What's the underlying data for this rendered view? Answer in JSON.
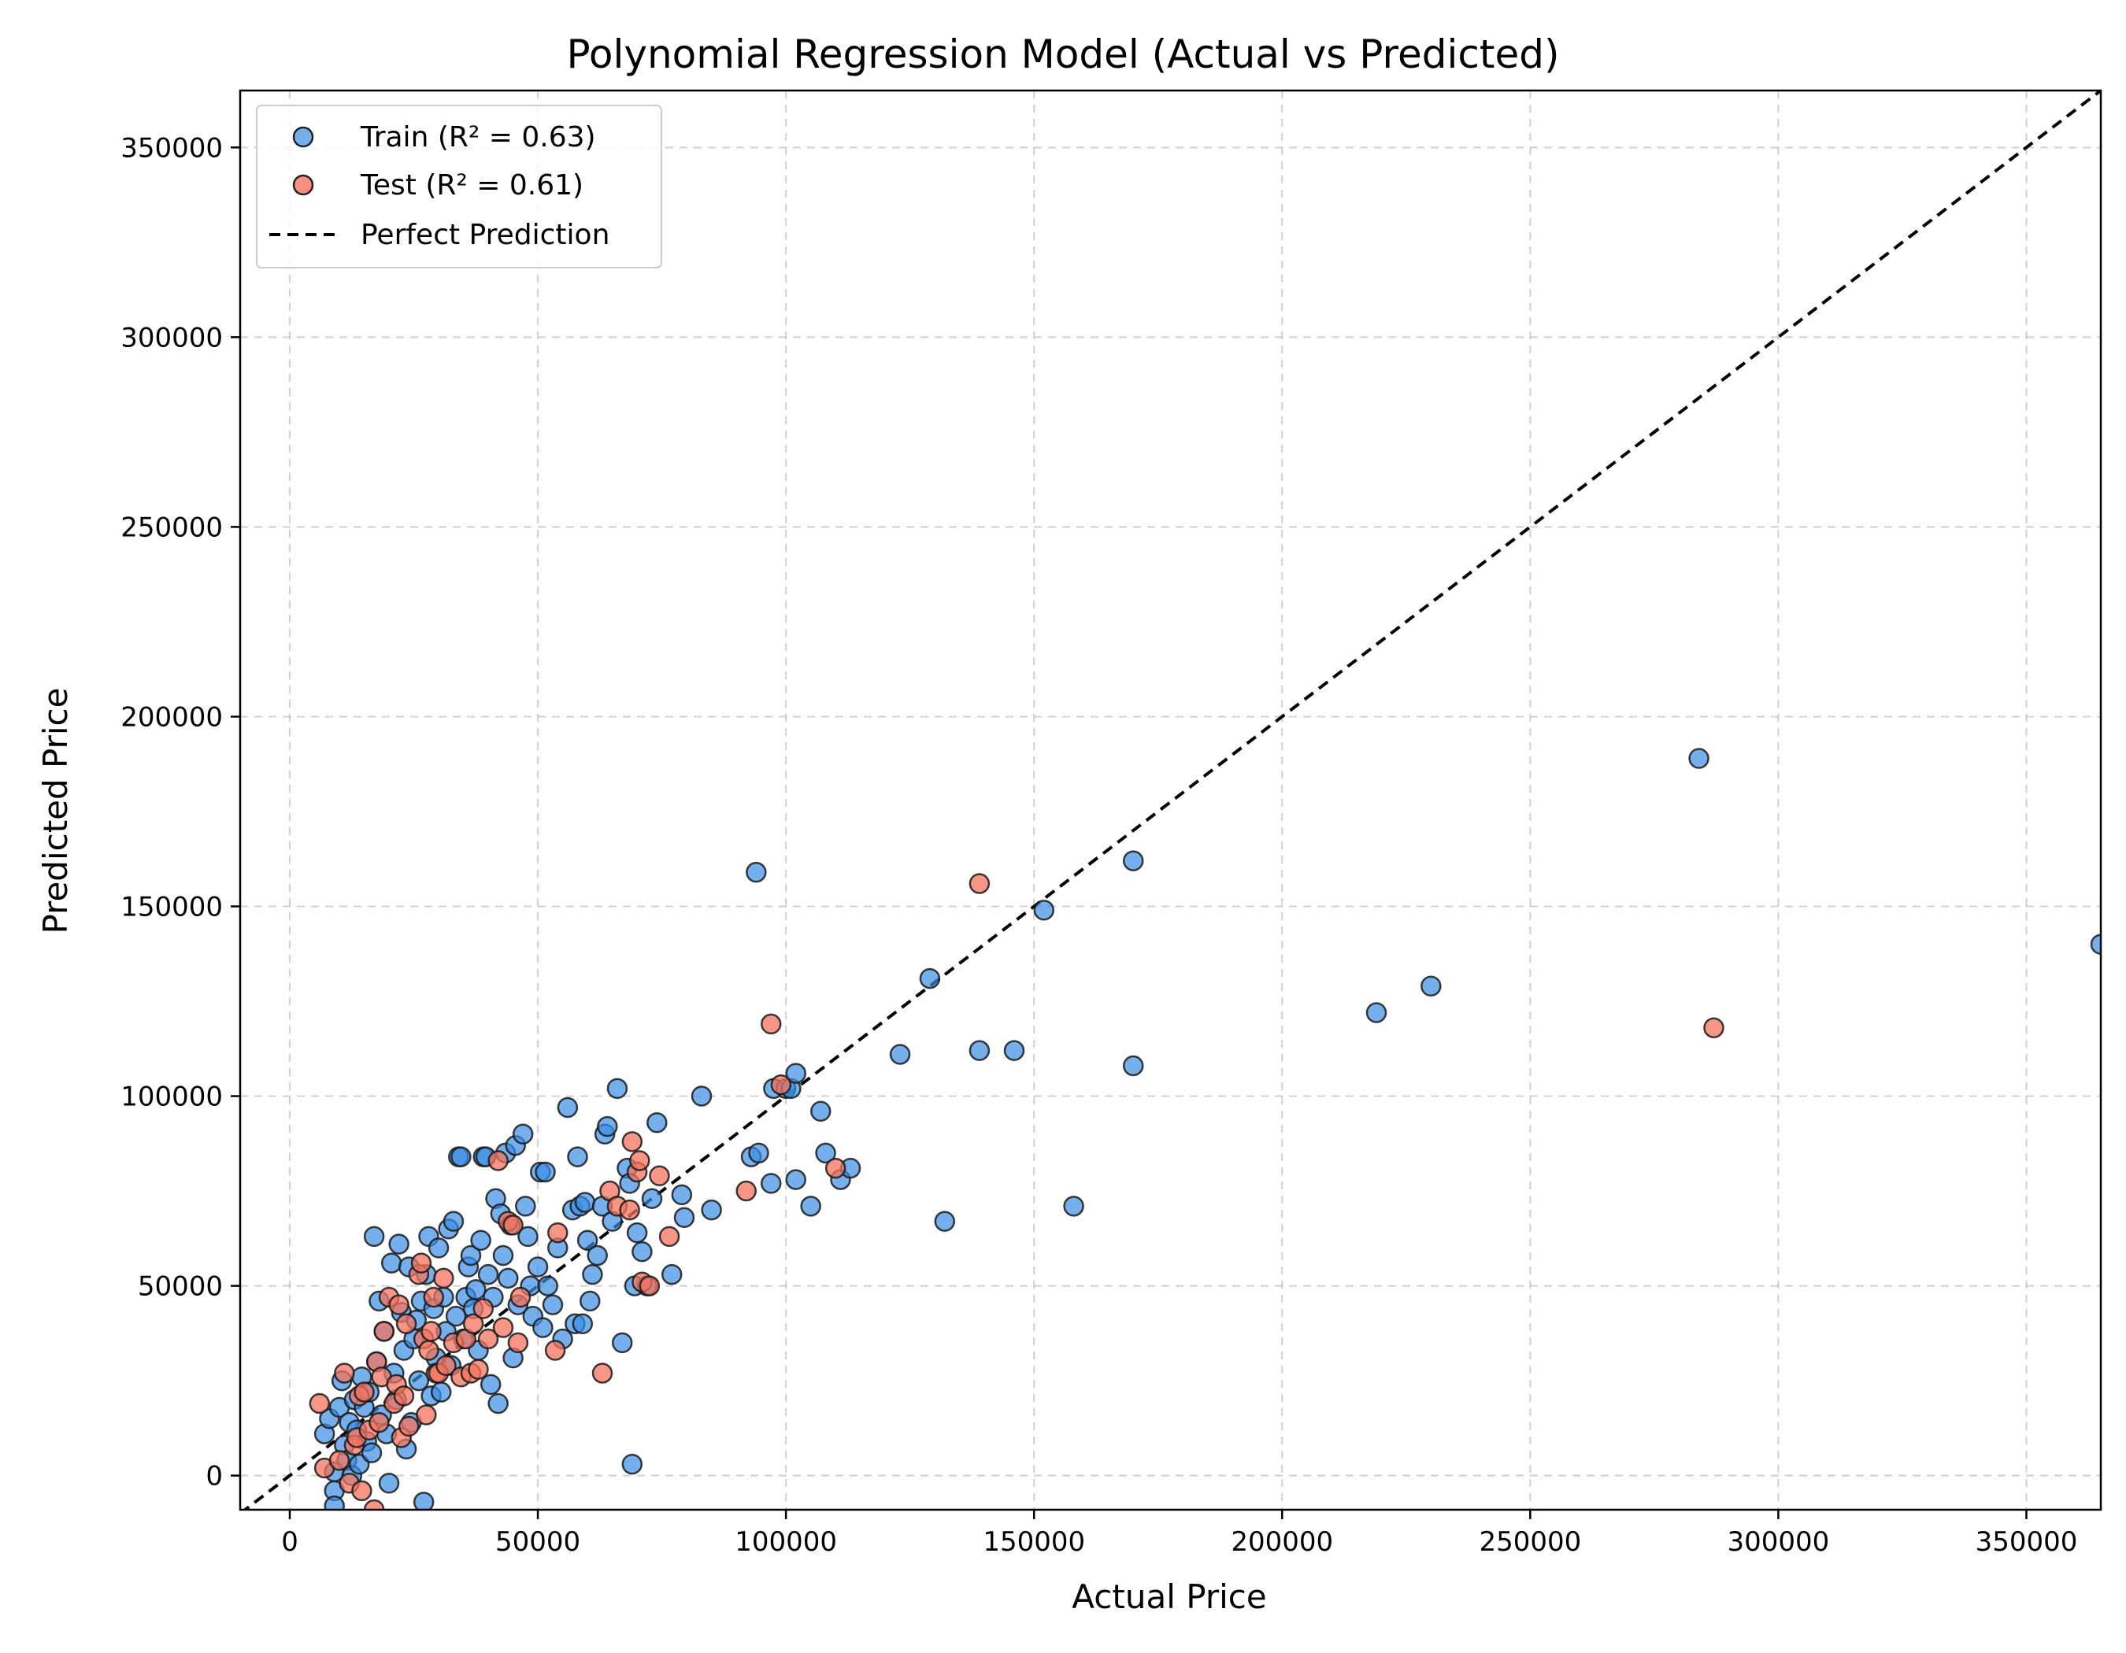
{
  "chart_data": {
    "type": "scatter",
    "title": "Polynomial Regression Model (Actual vs Predicted)",
    "xlabel": "Actual Price",
    "ylabel": "Predicted Price",
    "xlim": [
      -10000,
      365000
    ],
    "ylim": [
      -9000,
      365000
    ],
    "xticks": [
      0,
      50000,
      100000,
      150000,
      200000,
      250000,
      300000,
      350000
    ],
    "yticks": [
      0,
      50000,
      100000,
      150000,
      200000,
      250000,
      300000,
      350000
    ],
    "grid": true,
    "legend_position": "top-left",
    "series": [
      {
        "name": "Train (R² = 0.63)",
        "color": "#3a8ee6",
        "points": [
          [
            7000,
            11000
          ],
          [
            8000,
            15000
          ],
          [
            9000,
            1000
          ],
          [
            9000,
            -4000
          ],
          [
            9000,
            -8000
          ],
          [
            10000,
            18000
          ],
          [
            10500,
            25000
          ],
          [
            11000,
            8000
          ],
          [
            11500,
            4000
          ],
          [
            12000,
            14000
          ],
          [
            12500,
            0
          ],
          [
            13000,
            20000
          ],
          [
            13500,
            12000
          ],
          [
            14000,
            3000
          ],
          [
            14500,
            26000
          ],
          [
            15000,
            18000
          ],
          [
            15500,
            9000
          ],
          [
            16000,
            22000
          ],
          [
            16500,
            6000
          ],
          [
            17000,
            63000
          ],
          [
            17500,
            30000
          ],
          [
            18000,
            46000
          ],
          [
            18500,
            16000
          ],
          [
            19000,
            38000
          ],
          [
            19500,
            11000
          ],
          [
            20000,
            -2000
          ],
          [
            20500,
            56000
          ],
          [
            21000,
            27000
          ],
          [
            21500,
            20000
          ],
          [
            22000,
            61000
          ],
          [
            22500,
            43000
          ],
          [
            23000,
            33000
          ],
          [
            23500,
            7000
          ],
          [
            24000,
            55000
          ],
          [
            24500,
            14000
          ],
          [
            25000,
            36000
          ],
          [
            25500,
            41000
          ],
          [
            26000,
            25000
          ],
          [
            26500,
            46000
          ],
          [
            27000,
            -7000
          ],
          [
            27500,
            53000
          ],
          [
            28000,
            63000
          ],
          [
            28500,
            21000
          ],
          [
            29000,
            44000
          ],
          [
            29500,
            31000
          ],
          [
            30000,
            60000
          ],
          [
            30500,
            22000
          ],
          [
            31000,
            47000
          ],
          [
            31500,
            38000
          ],
          [
            32000,
            65000
          ],
          [
            32500,
            29000
          ],
          [
            33000,
            67000
          ],
          [
            33500,
            42000
          ],
          [
            34000,
            84000
          ],
          [
            34500,
            84000
          ],
          [
            35000,
            36000
          ],
          [
            35500,
            47000
          ],
          [
            36000,
            55000
          ],
          [
            36500,
            58000
          ],
          [
            37000,
            44000
          ],
          [
            37500,
            49000
          ],
          [
            38000,
            33000
          ],
          [
            38500,
            62000
          ],
          [
            39000,
            84000
          ],
          [
            39500,
            84000
          ],
          [
            40000,
            53000
          ],
          [
            40500,
            24000
          ],
          [
            41000,
            47000
          ],
          [
            41500,
            73000
          ],
          [
            42000,
            19000
          ],
          [
            42500,
            69000
          ],
          [
            43000,
            58000
          ],
          [
            43500,
            85000
          ],
          [
            44000,
            52000
          ],
          [
            44500,
            66000
          ],
          [
            45000,
            31000
          ],
          [
            45500,
            87000
          ],
          [
            46000,
            45000
          ],
          [
            47000,
            90000
          ],
          [
            47500,
            71000
          ],
          [
            48000,
            63000
          ],
          [
            48500,
            50000
          ],
          [
            49000,
            42000
          ],
          [
            50000,
            55000
          ],
          [
            50500,
            80000
          ],
          [
            51000,
            39000
          ],
          [
            51500,
            80000
          ],
          [
            52000,
            50000
          ],
          [
            53000,
            45000
          ],
          [
            54000,
            60000
          ],
          [
            55000,
            36000
          ],
          [
            56000,
            97000
          ],
          [
            57000,
            70000
          ],
          [
            57500,
            40000
          ],
          [
            58000,
            84000
          ],
          [
            58500,
            71000
          ],
          [
            59000,
            40000
          ],
          [
            59500,
            72000
          ],
          [
            60000,
            62000
          ],
          [
            60500,
            46000
          ],
          [
            61000,
            53000
          ],
          [
            62000,
            58000
          ],
          [
            63000,
            71000
          ],
          [
            63500,
            90000
          ],
          [
            64000,
            92000
          ],
          [
            65000,
            67000
          ],
          [
            66000,
            102000
          ],
          [
            67000,
            35000
          ],
          [
            68000,
            81000
          ],
          [
            68500,
            77000
          ],
          [
            69000,
            3000
          ],
          [
            69500,
            50000
          ],
          [
            70000,
            64000
          ],
          [
            71000,
            59000
          ],
          [
            72000,
            50000
          ],
          [
            73000,
            73000
          ],
          [
            74000,
            93000
          ],
          [
            77000,
            53000
          ],
          [
            79000,
            74000
          ],
          [
            79500,
            68000
          ],
          [
            83000,
            100000
          ],
          [
            85000,
            70000
          ],
          [
            93000,
            84000
          ],
          [
            94000,
            159000
          ],
          [
            94500,
            85000
          ],
          [
            97000,
            77000
          ],
          [
            97500,
            102000
          ],
          [
            100000,
            102000
          ],
          [
            101000,
            102000
          ],
          [
            102000,
            106000
          ],
          [
            102000,
            78000
          ],
          [
            105000,
            71000
          ],
          [
            107000,
            96000
          ],
          [
            108000,
            85000
          ],
          [
            111000,
            78000
          ],
          [
            113000,
            81000
          ],
          [
            123000,
            111000
          ],
          [
            129000,
            131000
          ],
          [
            132000,
            67000
          ],
          [
            139000,
            112000
          ],
          [
            146000,
            112000
          ],
          [
            152000,
            149000
          ],
          [
            158000,
            71000
          ],
          [
            170000,
            162000
          ],
          [
            170000,
            108000
          ],
          [
            219000,
            122000
          ],
          [
            230000,
            129000
          ],
          [
            284000,
            189000
          ],
          [
            365000,
            140000
          ]
        ]
      },
      {
        "name": "Test (R² = 0.61)",
        "color": "#f4735d",
        "points": [
          [
            6000,
            19000
          ],
          [
            7000,
            2000
          ],
          [
            10000,
            4000
          ],
          [
            11000,
            27000
          ],
          [
            12000,
            -2000
          ],
          [
            13000,
            8000
          ],
          [
            13500,
            10000
          ],
          [
            14000,
            21000
          ],
          [
            14500,
            -4000
          ],
          [
            15000,
            22000
          ],
          [
            16000,
            12000
          ],
          [
            17000,
            -9000
          ],
          [
            17500,
            30000
          ],
          [
            18000,
            14000
          ],
          [
            18500,
            26000
          ],
          [
            19000,
            38000
          ],
          [
            20000,
            47000
          ],
          [
            21000,
            19000
          ],
          [
            21500,
            24000
          ],
          [
            22000,
            45000
          ],
          [
            22500,
            10000
          ],
          [
            23000,
            21000
          ],
          [
            23500,
            40000
          ],
          [
            24000,
            13000
          ],
          [
            26000,
            53000
          ],
          [
            26500,
            56000
          ],
          [
            27000,
            36000
          ],
          [
            27500,
            16000
          ],
          [
            28000,
            33000
          ],
          [
            28500,
            38000
          ],
          [
            29000,
            47000
          ],
          [
            29500,
            27000
          ],
          [
            30000,
            27000
          ],
          [
            31000,
            52000
          ],
          [
            31500,
            29000
          ],
          [
            33000,
            35000
          ],
          [
            34500,
            26000
          ],
          [
            35500,
            36000
          ],
          [
            36500,
            27000
          ],
          [
            37000,
            40000
          ],
          [
            38000,
            28000
          ],
          [
            39000,
            44000
          ],
          [
            40000,
            36000
          ],
          [
            42000,
            83000
          ],
          [
            43000,
            39000
          ],
          [
            44000,
            67000
          ],
          [
            45000,
            66000
          ],
          [
            46000,
            35000
          ],
          [
            46500,
            47000
          ],
          [
            53500,
            33000
          ],
          [
            54000,
            64000
          ],
          [
            63000,
            27000
          ],
          [
            64500,
            75000
          ],
          [
            66000,
            71000
          ],
          [
            68500,
            70000
          ],
          [
            69000,
            88000
          ],
          [
            70000,
            80000
          ],
          [
            70500,
            83000
          ],
          [
            71000,
            51000
          ],
          [
            72500,
            50000
          ],
          [
            74500,
            79000
          ],
          [
            76500,
            63000
          ],
          [
            92000,
            75000
          ],
          [
            97000,
            119000
          ],
          [
            99000,
            103000
          ],
          [
            110000,
            81000
          ],
          [
            139000,
            156000
          ],
          [
            287000,
            118000
          ]
        ]
      },
      {
        "name": "Perfect Prediction",
        "color": "#000000",
        "line": [
          [
            -10000,
            -10000
          ],
          [
            365000,
            365000
          ]
        ]
      }
    ]
  }
}
